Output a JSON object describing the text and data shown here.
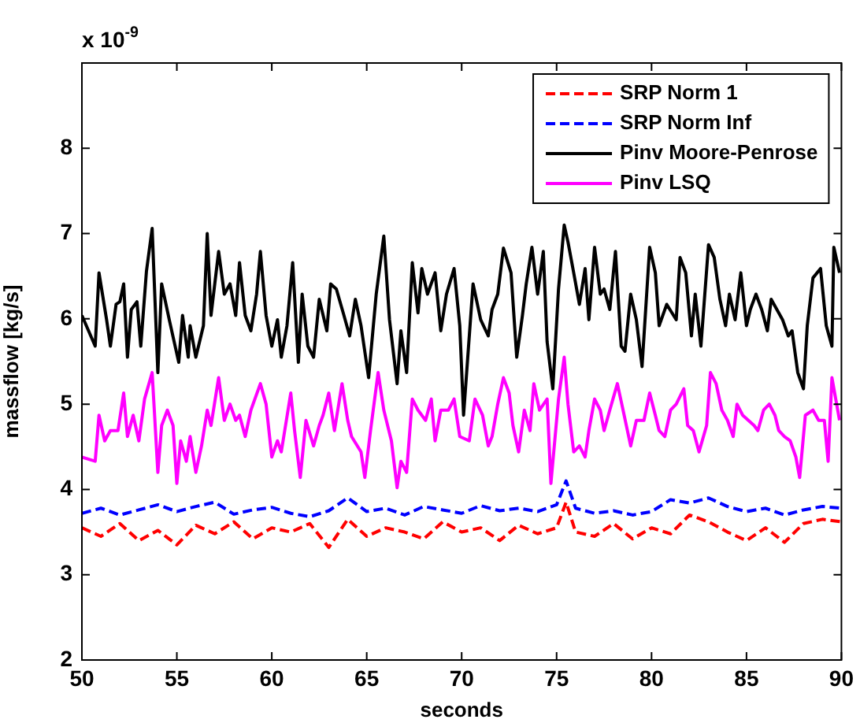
{
  "chart_data": {
    "type": "line",
    "xlabel": "seconds",
    "ylabel": "massflow [kg/s]",
    "annotations": [
      "x 10$^{-9}$"
    ],
    "xlim": [
      50,
      90
    ],
    "xticks": [
      50,
      55,
      60,
      65,
      70,
      75,
      80,
      85,
      90
    ],
    "ylim": [
      2,
      9
    ],
    "yticks": [
      2,
      3,
      4,
      5,
      6,
      7,
      8
    ],
    "grid": false,
    "legend": "top right",
    "marker": "none",
    "series": [
      {
        "name": "SRP Norm 1",
        "color": "#ff0000",
        "line_style": "dashed",
        "x": [
          50,
          51,
          52,
          53,
          54,
          55,
          56,
          57,
          58,
          59,
          60,
          61,
          62,
          63,
          64,
          65,
          66,
          67,
          68,
          69,
          70,
          71,
          72,
          73,
          74,
          75,
          75.5,
          76,
          77,
          78,
          79,
          80,
          81,
          82,
          83,
          84,
          85,
          86,
          87,
          88,
          89,
          90
        ],
        "values": [
          3.55,
          3.45,
          3.6,
          3.4,
          3.52,
          3.35,
          3.58,
          3.48,
          3.62,
          3.42,
          3.55,
          3.5,
          3.6,
          3.32,
          3.65,
          3.45,
          3.55,
          3.5,
          3.42,
          3.62,
          3.5,
          3.55,
          3.4,
          3.58,
          3.48,
          3.55,
          3.85,
          3.5,
          3.45,
          3.6,
          3.42,
          3.55,
          3.48,
          3.7,
          3.62,
          3.5,
          3.4,
          3.55,
          3.38,
          3.6,
          3.65,
          3.62
        ]
      },
      {
        "name": "SRP Norm Inf",
        "color": "#0000ff",
        "line_style": "dashed",
        "x": [
          50,
          51,
          52,
          53,
          54,
          55,
          56,
          57,
          58,
          59,
          60,
          61,
          62,
          63,
          64,
          65,
          66,
          67,
          68,
          69,
          70,
          71,
          72,
          73,
          74,
          75,
          75.5,
          76,
          77,
          78,
          79,
          80,
          81,
          82,
          83,
          84,
          85,
          86,
          87,
          88,
          89,
          90
        ],
        "values": [
          3.72,
          3.78,
          3.7,
          3.76,
          3.82,
          3.74,
          3.8,
          3.85,
          3.71,
          3.76,
          3.79,
          3.72,
          3.68,
          3.75,
          3.9,
          3.74,
          3.78,
          3.7,
          3.8,
          3.76,
          3.72,
          3.81,
          3.75,
          3.78,
          3.74,
          3.82,
          4.1,
          3.78,
          3.72,
          3.75,
          3.7,
          3.74,
          3.88,
          3.84,
          3.9,
          3.8,
          3.74,
          3.78,
          3.7,
          3.76,
          3.8,
          3.78
        ]
      },
      {
        "name": "Pinv Moore-Penrose",
        "color": "#000000",
        "line_style": "solid",
        "x": [
          50,
          50.7,
          50.9,
          51.3,
          51.5,
          51.8,
          52,
          52.2,
          52.4,
          52.6,
          52.9,
          53.1,
          53.4,
          53.7,
          54,
          54.2,
          54.6,
          55.1,
          55.3,
          55.6,
          55.7,
          56,
          56.4,
          56.6,
          56.8,
          57.2,
          57.5,
          57.8,
          58.1,
          58.3,
          58.6,
          58.9,
          59.2,
          59.4,
          59.7,
          60,
          60.3,
          60.5,
          60.8,
          61.1,
          61.4,
          61.6,
          61.9,
          62.2,
          62.5,
          62.9,
          63.1,
          63.4,
          63.8,
          64.1,
          64.4,
          64.7,
          65.1,
          65.5,
          65.9,
          66.2,
          66.6,
          66.8,
          67.1,
          67.4,
          67.7,
          67.9,
          68.2,
          68.6,
          68.9,
          69.2,
          69.6,
          69.9,
          70.1,
          70.6,
          71,
          71.4,
          71.6,
          71.9,
          72.2,
          72.6,
          72.9,
          73.2,
          73.4,
          73.7,
          74,
          74.3,
          74.5,
          74.8,
          75.1,
          75.4,
          75.6,
          75.9,
          76.2,
          76.5,
          76.7,
          77,
          77.3,
          77.5,
          77.8,
          78.1,
          78.4,
          78.6,
          78.9,
          79.2,
          79.5,
          79.9,
          80.2,
          80.4,
          80.8,
          81.3,
          81.5,
          81.8,
          82.1,
          82.3,
          82.6,
          83,
          83.3,
          83.6,
          83.9,
          84.1,
          84.4,
          84.7,
          85,
          85.2,
          85.5,
          85.8,
          86.1,
          86.3,
          86.6,
          86.9,
          87.2,
          87.4,
          87.7,
          88,
          88.2,
          88.5,
          88.9,
          89.2,
          89.5,
          89.6,
          89.9
        ],
        "values": [
          6.04,
          5.68,
          6.54,
          5.99,
          5.68,
          6.17,
          6.2,
          6.41,
          5.55,
          6.11,
          6.2,
          5.68,
          6.56,
          7.06,
          5.37,
          6.41,
          5.99,
          5.49,
          6.04,
          5.55,
          5.92,
          5.55,
          5.92,
          7,
          6.04,
          6.79,
          6.29,
          6.41,
          6.04,
          6.66,
          6.04,
          5.86,
          6.29,
          6.79,
          6.04,
          5.68,
          5.99,
          5.55,
          5.92,
          6.66,
          5.49,
          6.29,
          5.68,
          5.55,
          6.23,
          5.86,
          6.41,
          6.35,
          6.04,
          5.8,
          6.23,
          5.92,
          5.31,
          6.29,
          6.97,
          5.99,
          5.24,
          5.86,
          5.37,
          6.66,
          6.07,
          6.59,
          6.29,
          6.54,
          5.86,
          6.29,
          6.59,
          5.92,
          4.87,
          6.41,
          5.99,
          5.8,
          6.11,
          6.29,
          6.83,
          6.54,
          5.55,
          6.04,
          6.41,
          6.84,
          6.29,
          6.79,
          5.73,
          5.18,
          6.35,
          7.1,
          6.9,
          6.54,
          6.17,
          6.59,
          5.99,
          6.84,
          6.29,
          6.35,
          6.11,
          6.79,
          5.68,
          5.62,
          6.29,
          5.99,
          5.44,
          6.84,
          6.54,
          5.92,
          6.17,
          5.99,
          6.72,
          6.54,
          5.8,
          6.29,
          5.68,
          6.87,
          6.72,
          6.23,
          5.92,
          6.29,
          5.99,
          6.54,
          5.92,
          6.11,
          6.29,
          6.11,
          5.86,
          6.23,
          6.11,
          5.99,
          5.8,
          5.86,
          5.37,
          5.18,
          5.92,
          6.48,
          6.59,
          5.92,
          5.68,
          6.84,
          6.54
        ]
      },
      {
        "name": "Pinv LSQ",
        "color": "#ff00ff",
        "line_style": "solid",
        "x": [
          50,
          50.7,
          50.9,
          51.2,
          51.5,
          51.9,
          52.2,
          52.4,
          52.7,
          53,
          53.3,
          53.7,
          54,
          54.2,
          54.5,
          54.8,
          55,
          55.2,
          55.5,
          55.7,
          56,
          56.3,
          56.6,
          56.8,
          57.2,
          57.5,
          57.8,
          58.1,
          58.3,
          58.6,
          58.9,
          59.4,
          59.7,
          60,
          60.3,
          60.5,
          61,
          61.2,
          61.5,
          61.8,
          62.2,
          62.5,
          62.7,
          63,
          63.3,
          63.7,
          64,
          64.2,
          64.7,
          64.9,
          65.2,
          65.6,
          65.9,
          66.3,
          66.6,
          66.8,
          67.1,
          67.4,
          67.7,
          68.1,
          68.4,
          68.6,
          68.9,
          69.3,
          69.6,
          69.9,
          70.4,
          70.7,
          71.1,
          71.4,
          71.6,
          71.9,
          72.2,
          72.5,
          72.7,
          73,
          73.3,
          73.6,
          73.8,
          74.1,
          74.5,
          74.7,
          75.1,
          75.4,
          75.6,
          75.9,
          76.2,
          76.5,
          76.7,
          77,
          77.3,
          77.5,
          77.8,
          78.2,
          78.5,
          78.9,
          79.2,
          79.6,
          79.9,
          80.2,
          80.4,
          80.7,
          81,
          81.3,
          81.7,
          81.9,
          82.2,
          82.5,
          82.9,
          83.1,
          83.4,
          83.7,
          84,
          84.3,
          84.5,
          84.8,
          85.1,
          85.4,
          85.6,
          85.9,
          86.2,
          86.5,
          86.7,
          87,
          87.3,
          87.6,
          87.8,
          88.1,
          88.5,
          88.8,
          89.1,
          89.3,
          89.5,
          89.9
        ],
        "values": [
          4.38,
          4.33,
          4.87,
          4.57,
          4.69,
          4.69,
          5.13,
          4.62,
          4.87,
          4.57,
          5.06,
          5.37,
          4.2,
          4.75,
          4.93,
          4.75,
          4.07,
          4.57,
          4.33,
          4.62,
          4.2,
          4.51,
          4.93,
          4.75,
          5.31,
          4.81,
          5,
          4.81,
          4.87,
          4.62,
          4.93,
          5.24,
          5,
          4.38,
          4.57,
          4.44,
          5.13,
          4.69,
          4.14,
          4.81,
          4.51,
          4.75,
          4.87,
          5.13,
          4.69,
          5.24,
          4.81,
          4.62,
          4.44,
          4.14,
          4.69,
          5.37,
          4.93,
          4.57,
          4.02,
          4.33,
          4.2,
          5.06,
          4.93,
          4.81,
          5.06,
          4.57,
          4.93,
          4.93,
          5.06,
          4.62,
          4.57,
          5.06,
          4.87,
          4.51,
          4.62,
          5,
          5.31,
          5.13,
          4.75,
          4.44,
          4.93,
          4.69,
          5.24,
          4.93,
          5.06,
          4.07,
          5.06,
          5.55,
          5,
          4.44,
          4.51,
          4.38,
          4.69,
          5.06,
          4.93,
          4.69,
          4.93,
          5.24,
          4.93,
          4.51,
          4.81,
          4.81,
          5.13,
          4.87,
          4.69,
          4.62,
          4.93,
          5,
          5.18,
          4.75,
          4.69,
          4.44,
          4.75,
          5.37,
          5.24,
          4.93,
          4.81,
          4.62,
          5,
          4.87,
          4.81,
          4.75,
          4.69,
          4.93,
          5,
          4.87,
          4.69,
          4.62,
          4.57,
          4.38,
          4.14,
          4.87,
          4.93,
          4.81,
          4.81,
          4.33,
          5.31,
          4.81
        ]
      }
    ]
  }
}
